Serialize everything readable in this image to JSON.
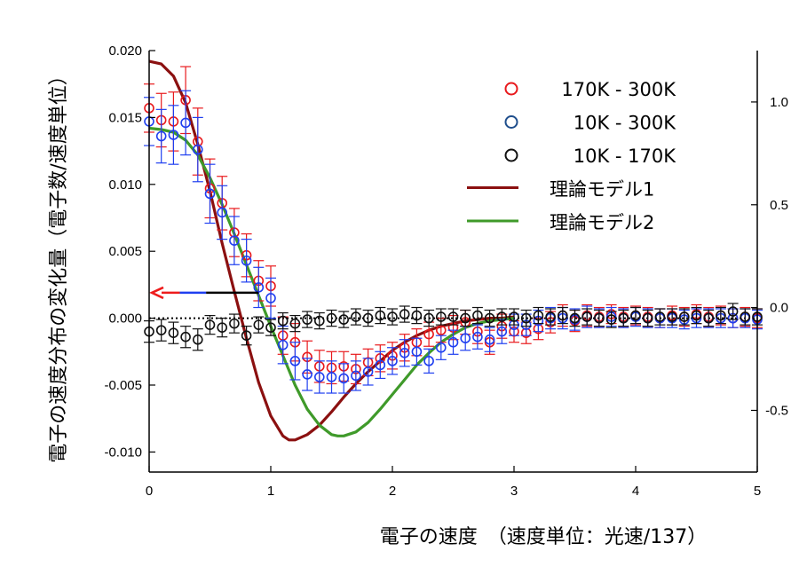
{
  "chart_data": {
    "type": "scatter",
    "xlabel": "電子の速度　（速度単位：光速/137）",
    "ylabel": "電子の速度分布の変化量（電子数/速度単位）",
    "xlim": [
      0,
      5
    ],
    "ylim": [
      -0.0115,
      0.02
    ],
    "y2lim": [
      -0.8,
      1.25
    ],
    "x_ticks": [
      "0",
      "1",
      "2",
      "3",
      "4",
      "5"
    ],
    "y_ticks": [
      "0.020",
      "0.015",
      "0.010",
      "0.005",
      "0.000",
      "-0.005",
      "-0.010"
    ],
    "y2_ticks": [
      "1.0",
      "0.5",
      "0.0",
      "-0.5"
    ],
    "grid": false,
    "legend_position": "top-right",
    "colors": {
      "s1": "#e8191c",
      "s2": "#1f3ff0",
      "s3": "#111111",
      "model1": "#8b1010",
      "model2": "#3f9a2a",
      "arrow_red": "#ee1c1c",
      "arrow_blue": "#1f3ff0",
      "arrow_black": "#000000"
    },
    "legend": [
      {
        "label": "170K - 300K",
        "color": "#e8191c",
        "kind": "marker"
      },
      {
        "label": "10K - 300K",
        "color": "#1f4e8c",
        "kind": "marker"
      },
      {
        "label": "10K - 170K",
        "color": "#111111",
        "kind": "marker"
      },
      {
        "label": "理論モデル1",
        "color": "#8b1010",
        "kind": "line"
      },
      {
        "label": "理論モデル2",
        "color": "#3f9a2a",
        "kind": "line"
      }
    ],
    "series": [
      {
        "name": "170K - 300K",
        "axis": "left",
        "color": "#e8191c",
        "x": [
          0,
          0.1,
          0.2,
          0.3,
          0.4,
          0.5,
          0.6,
          0.7,
          0.8,
          0.9,
          1.0,
          1.1,
          1.2,
          1.3,
          1.4,
          1.5,
          1.6,
          1.7,
          1.8,
          1.9,
          2.0,
          2.1,
          2.2,
          2.3,
          2.4,
          2.5,
          2.6,
          2.7,
          2.8,
          2.9,
          3.0,
          3.1,
          3.2,
          3.3,
          3.4,
          3.5,
          3.6,
          3.7,
          3.8,
          3.9,
          4.0,
          4.1,
          4.2,
          4.3,
          4.4,
          4.5,
          4.6,
          4.7,
          4.8,
          4.9,
          5.0
        ],
        "y": [
          0.0157,
          0.0148,
          0.0147,
          0.0163,
          0.0132,
          0.0097,
          0.0086,
          0.0064,
          0.0047,
          0.0028,
          0.0024,
          -0.0013,
          -0.0018,
          -0.0029,
          -0.0036,
          -0.0037,
          -0.0036,
          -0.0038,
          -0.0033,
          -0.003,
          -0.0028,
          -0.0022,
          -0.0018,
          -0.0012,
          -0.0009,
          -0.0007,
          -0.0003,
          -0.001,
          -0.0018,
          -0.0006,
          -0.001,
          -0.0011,
          -0.0008,
          -0.0003,
          0.0002,
          -0.0002,
          0.0002,
          0.0001,
          0.0003,
          0.0001,
          0.0002,
          0.0001,
          0.0,
          0.0002,
          0.0001,
          0.0003,
          0.0001,
          0.0002,
          0.0,
          0.0001,
          0.0
        ],
        "err": [
          0.0018,
          0.002,
          0.0022,
          0.0025,
          0.0025,
          0.0022,
          0.002,
          0.0018,
          0.0016,
          0.0015,
          0.0015,
          0.0014,
          0.0014,
          0.0012,
          0.0012,
          0.0012,
          0.0011,
          0.0011,
          0.001,
          0.001,
          0.001,
          0.001,
          0.001,
          0.0009,
          0.0009,
          0.0009,
          0.0009,
          0.0009,
          0.0009,
          0.0009,
          0.0008,
          0.0008,
          0.0008,
          0.0008,
          0.0008,
          0.0008,
          0.0008,
          0.0007,
          0.0007,
          0.0007,
          0.0007,
          0.0007,
          0.0007,
          0.0007,
          0.0007,
          0.0007,
          0.0007,
          0.0007,
          0.0007,
          0.0007,
          0.0007
        ]
      },
      {
        "name": "10K - 300K",
        "axis": "left",
        "color": "#1f3ff0",
        "x": [
          0,
          0.1,
          0.2,
          0.3,
          0.4,
          0.5,
          0.6,
          0.7,
          0.8,
          0.9,
          1.0,
          1.1,
          1.2,
          1.3,
          1.4,
          1.5,
          1.6,
          1.7,
          1.8,
          1.9,
          2.0,
          2.1,
          2.2,
          2.3,
          2.4,
          2.5,
          2.6,
          2.7,
          2.8,
          2.9,
          3.0,
          3.1,
          3.2,
          3.3,
          3.4,
          3.5,
          3.6,
          3.7,
          3.8,
          3.9,
          4.0,
          4.1,
          4.2,
          4.3,
          4.4,
          4.5,
          4.6,
          4.7,
          4.8,
          4.9,
          5.0
        ],
        "y": [
          0.0147,
          0.0136,
          0.0137,
          0.0146,
          0.0126,
          0.0093,
          0.0079,
          0.0058,
          0.0043,
          0.0023,
          0.0015,
          -0.002,
          -0.0032,
          -0.0042,
          -0.0044,
          -0.0044,
          -0.0045,
          -0.0043,
          -0.004,
          -0.0035,
          -0.0032,
          -0.0026,
          -0.0025,
          -0.0032,
          -0.0022,
          -0.0018,
          -0.0015,
          -0.0014,
          -0.0016,
          -0.001,
          -0.0005,
          -0.0005,
          -0.0002,
          0.0,
          0.0,
          -0.0001,
          0.0001,
          0.0,
          0.0001,
          0.0,
          0.0001,
          0.0,
          0.0,
          0.0,
          -0.0001,
          0.0,
          0.0,
          0.0,
          0.0,
          0.0,
          -0.0001
        ],
        "err": [
          0.0018,
          0.002,
          0.0022,
          0.0024,
          0.0024,
          0.0022,
          0.002,
          0.0018,
          0.0016,
          0.0015,
          0.0015,
          0.0014,
          0.0014,
          0.0012,
          0.0012,
          0.0012,
          0.0011,
          0.0011,
          0.001,
          0.001,
          0.001,
          0.001,
          0.001,
          0.0009,
          0.0009,
          0.0009,
          0.0009,
          0.0009,
          0.0009,
          0.0009,
          0.0008,
          0.0008,
          0.0008,
          0.0008,
          0.0008,
          0.0008,
          0.0008,
          0.0007,
          0.0007,
          0.0007,
          0.0007,
          0.0007,
          0.0007,
          0.0007,
          0.0007,
          0.0007,
          0.0007,
          0.0007,
          0.0007,
          0.0007,
          0.0007
        ]
      },
      {
        "name": "10K - 170K",
        "axis": "left",
        "color": "#111111",
        "x": [
          0,
          0.1,
          0.2,
          0.3,
          0.4,
          0.5,
          0.6,
          0.7,
          0.8,
          0.9,
          1.0,
          1.1,
          1.2,
          1.3,
          1.4,
          1.5,
          1.6,
          1.7,
          1.8,
          1.9,
          2.0,
          2.1,
          2.2,
          2.3,
          2.4,
          2.5,
          2.6,
          2.7,
          2.8,
          2.9,
          3.0,
          3.1,
          3.2,
          3.3,
          3.4,
          3.5,
          3.6,
          3.7,
          3.8,
          3.9,
          4.0,
          4.1,
          4.2,
          4.3,
          4.4,
          4.5,
          4.6,
          4.7,
          4.8,
          4.9,
          5.0
        ],
        "y": [
          -0.001,
          -0.0009,
          -0.0011,
          -0.0014,
          -0.0016,
          -0.0005,
          -0.0007,
          -0.0004,
          -0.0013,
          -0.0005,
          -0.0007,
          -0.0002,
          -0.0004,
          -0.0001,
          -0.0002,
          0.0,
          -0.0001,
          0.0001,
          0.0,
          0.0002,
          0.0001,
          0.0003,
          0.0002,
          0.0,
          0.0001,
          0.0001,
          0.0,
          0.0002,
          0.0,
          0.0001,
          0.0001,
          0.0,
          0.0002,
          0.0001,
          0.0002,
          0.0,
          0.0001,
          0.0,
          -0.0001,
          0.0,
          0.0002,
          0.0,
          0.0001,
          0.0001,
          0.0001,
          0.0002,
          0.0,
          0.0002,
          0.0005,
          0.0001,
          0.0001
        ],
        "err": [
          0.0008,
          0.0008,
          0.0008,
          0.0008,
          0.0008,
          0.0007,
          0.0007,
          0.0007,
          0.0007,
          0.0006,
          0.0006,
          0.0006,
          0.0006,
          0.0006,
          0.0006,
          0.0006,
          0.0006,
          0.0006,
          0.0006,
          0.0006,
          0.0006,
          0.0006,
          0.0006,
          0.0006,
          0.0006,
          0.0006,
          0.0006,
          0.0006,
          0.0006,
          0.0006,
          0.0006,
          0.0006,
          0.0006,
          0.0006,
          0.0006,
          0.0006,
          0.0006,
          0.0006,
          0.0006,
          0.0006,
          0.0006,
          0.0006,
          0.0006,
          0.0006,
          0.0006,
          0.0006,
          0.0006,
          0.0006,
          0.0006,
          0.0006,
          0.0006
        ]
      },
      {
        "name": "理論モデル1",
        "axis": "left",
        "type": "line",
        "color": "#8b1010",
        "x": [
          0,
          0.1,
          0.2,
          0.3,
          0.4,
          0.5,
          0.6,
          0.7,
          0.8,
          0.9,
          1.0,
          1.1,
          1.15,
          1.2,
          1.3,
          1.4,
          1.5,
          1.6,
          1.7,
          1.8,
          1.9,
          2.0,
          2.1,
          2.2,
          2.3,
          2.4,
          2.5,
          2.6,
          2.7,
          2.8,
          2.9,
          3.0
        ],
        "y": [
          0.0192,
          0.019,
          0.0181,
          0.0161,
          0.013,
          0.0095,
          0.0056,
          0.002,
          -0.0015,
          -0.0048,
          -0.0073,
          -0.0088,
          -0.0091,
          -0.0091,
          -0.0087,
          -0.008,
          -0.007,
          -0.0059,
          -0.0049,
          -0.004,
          -0.0032,
          -0.0024,
          -0.0018,
          -0.0013,
          -0.0009,
          -0.0006,
          -0.0004,
          -0.0002,
          -0.0001,
          0.0,
          0.0,
          0.0001
        ]
      },
      {
        "name": "理論モデル2",
        "axis": "left",
        "type": "line",
        "color": "#3f9a2a",
        "x": [
          0,
          0.1,
          0.2,
          0.3,
          0.4,
          0.5,
          0.6,
          0.7,
          0.8,
          0.9,
          1.0,
          1.1,
          1.2,
          1.3,
          1.4,
          1.5,
          1.55,
          1.6,
          1.7,
          1.8,
          1.9,
          2.0,
          2.1,
          2.2,
          2.3,
          2.4,
          2.5,
          2.6,
          2.7,
          2.8,
          2.9,
          3.0
        ],
        "y": [
          0.0142,
          0.0141,
          0.0139,
          0.0133,
          0.0122,
          0.0105,
          0.0085,
          0.0063,
          0.004,
          0.0017,
          -0.0006,
          -0.0028,
          -0.005,
          -0.0068,
          -0.008,
          -0.0087,
          -0.0088,
          -0.0088,
          -0.0085,
          -0.0078,
          -0.0068,
          -0.0057,
          -0.0046,
          -0.0035,
          -0.0026,
          -0.0018,
          -0.0012,
          -0.0007,
          -0.0004,
          -0.0002,
          -0.0001,
          0.0
        ]
      }
    ],
    "annotations": [
      {
        "kind": "arrow",
        "from_x": 0.9,
        "to_x": 0.0,
        "y": 0.0019
      }
    ]
  }
}
